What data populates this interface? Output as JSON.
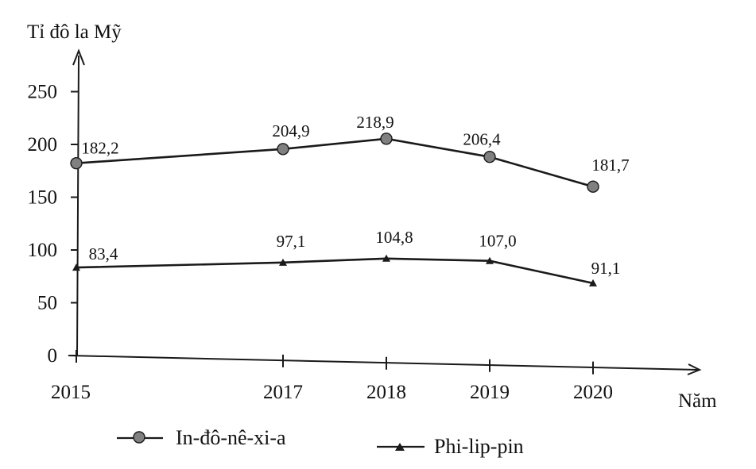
{
  "chart_data": {
    "type": "line",
    "ylabel": "Tỉ đô la Mỹ",
    "xlabel": "Năm",
    "x": [
      "2015",
      "2017",
      "2018",
      "2019",
      "2020"
    ],
    "x_values": [
      2015,
      2017,
      2018,
      2019,
      2020
    ],
    "yticks": [
      0,
      50,
      100,
      150,
      200,
      250
    ],
    "ylim": [
      0,
      275
    ],
    "series": [
      {
        "name": "In-đô-nê-xi-a",
        "values": [
          182.2,
          204.9,
          218.9,
          206.4,
          181.7
        ],
        "labels": [
          "182,2",
          "204,9",
          "218,9",
          "206,4",
          "181,7"
        ],
        "marker": "circle"
      },
      {
        "name": "Phi-lip-pin",
        "values": [
          83.4,
          97.1,
          104.8,
          107.0,
          91.1
        ],
        "labels": [
          "83,4",
          "97,1",
          "104,8",
          "107,0",
          "91,1"
        ],
        "marker": "triangle"
      }
    ],
    "legend_position": "bottom",
    "colors": {
      "line": "#1a1a1a",
      "circle_fill": "#808080"
    }
  }
}
